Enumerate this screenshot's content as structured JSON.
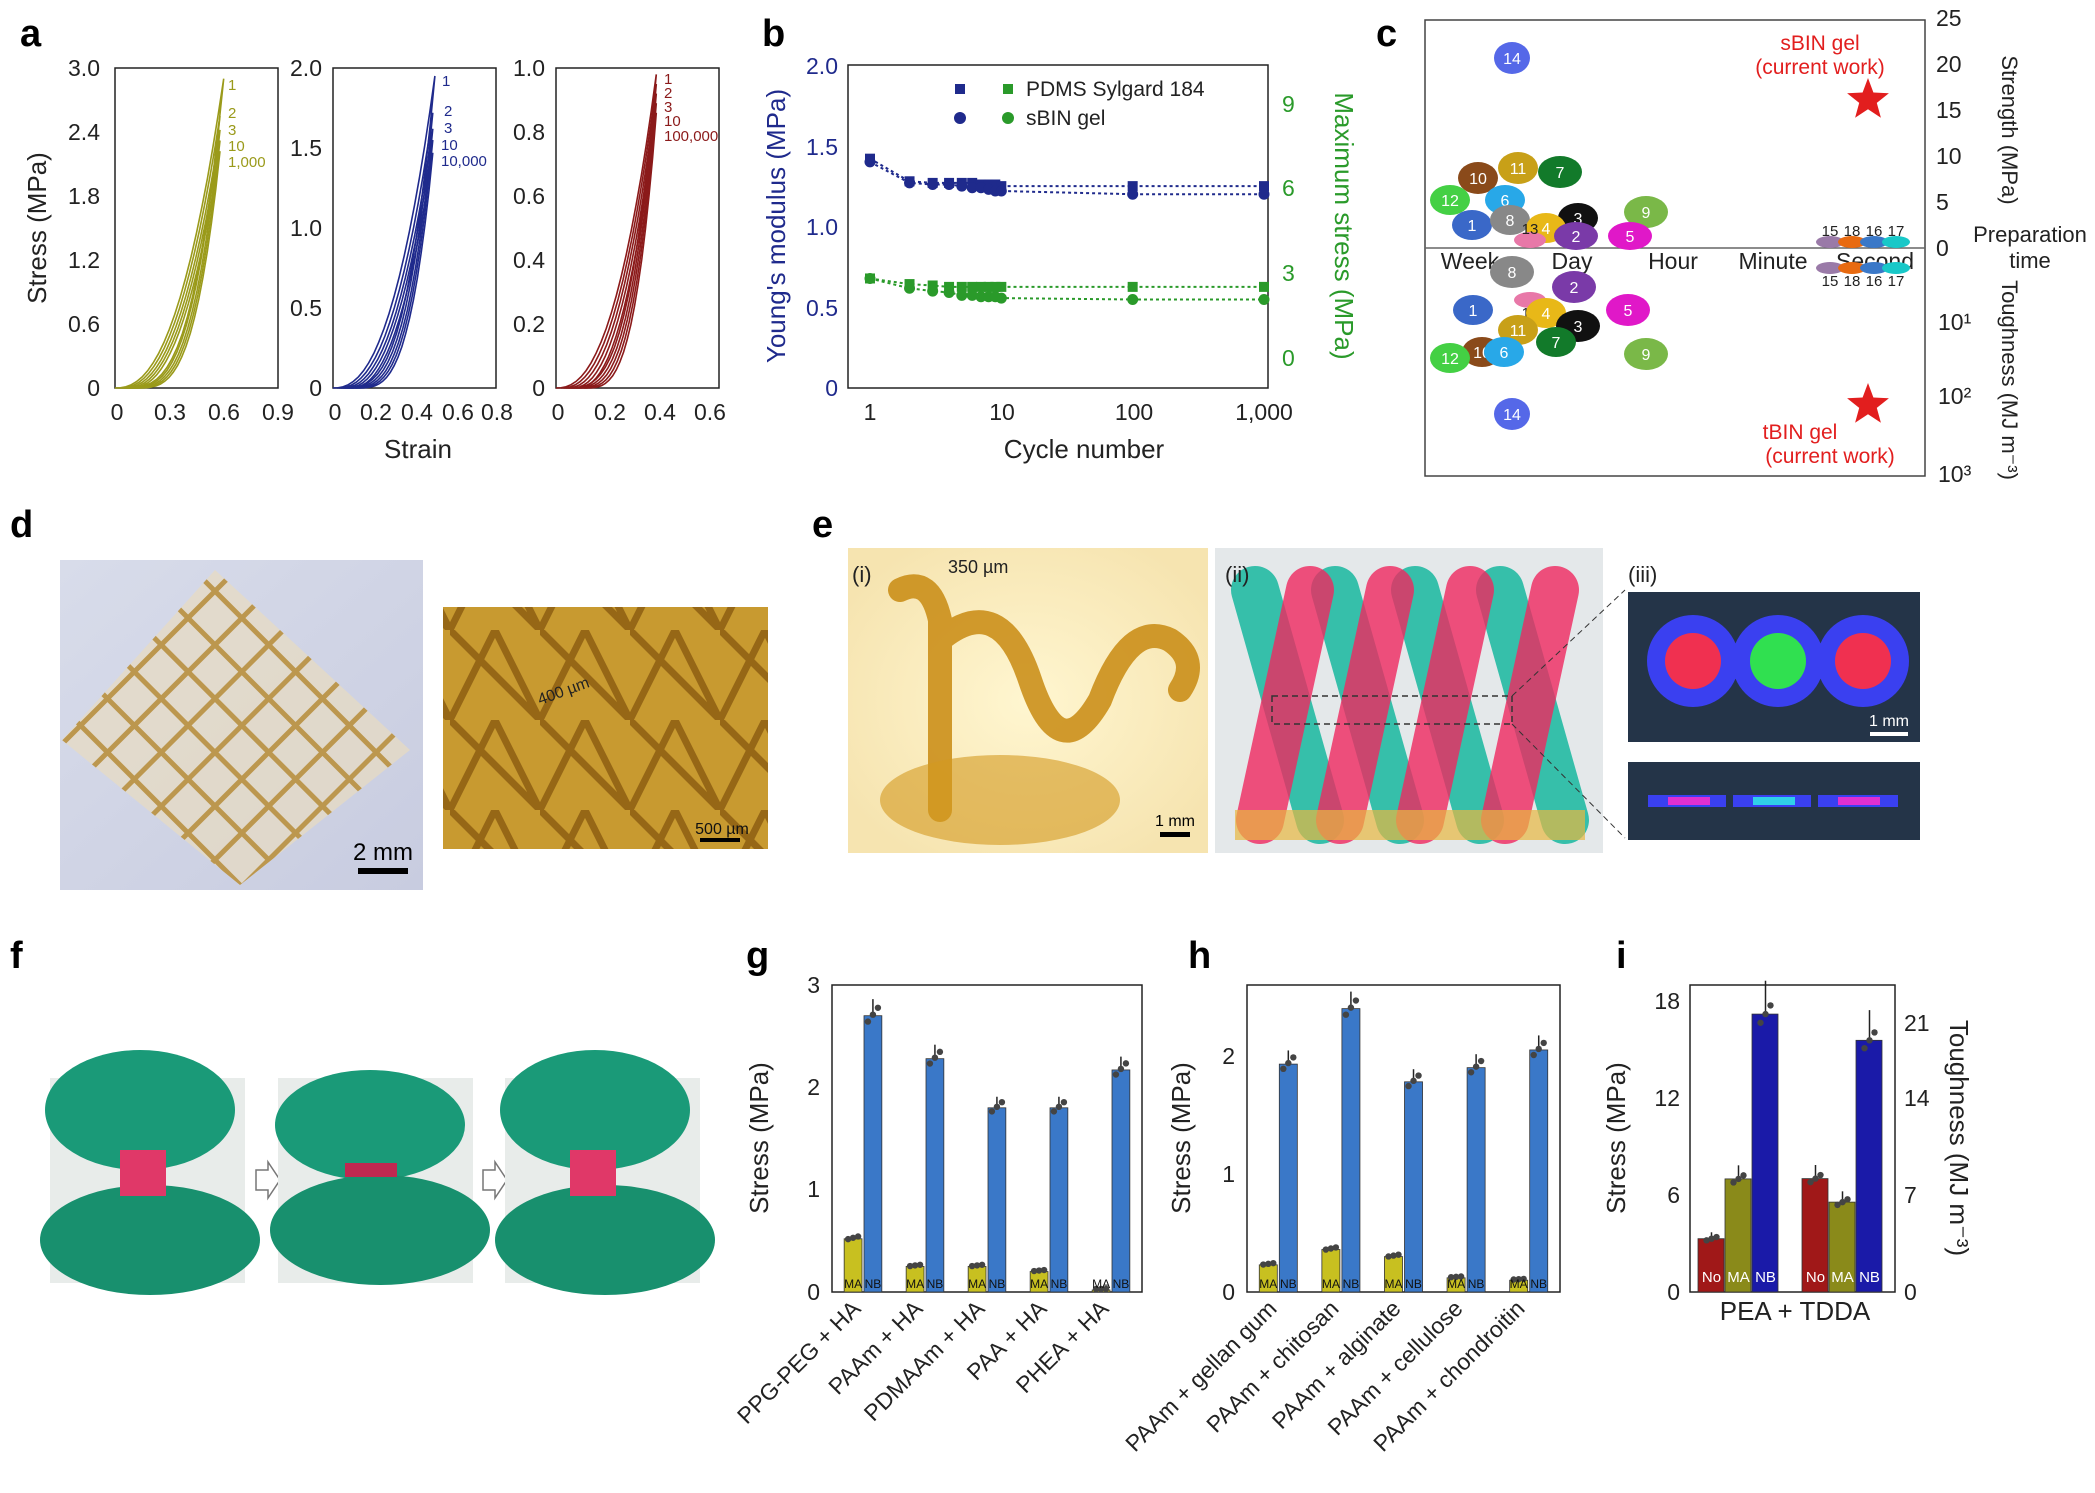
{
  "colors": {
    "olive": "#9a9a1a",
    "navy": "#1f2a8c",
    "maroon": "#8b1a1a",
    "green": "#2a9a2a",
    "blue": "#3a78c8",
    "red": "#e21e1e",
    "ma": "#8a8a1a",
    "nobar": "#a01818",
    "nb": "#1a1aa8"
  },
  "panels": {
    "a": "a",
    "b": "b",
    "c": "c",
    "d": "d",
    "e": "e",
    "f": "f",
    "g": "g",
    "h": "h",
    "i": "i"
  },
  "chart_data": [
    {
      "id": "a1",
      "type": "line",
      "xlabel": "Strain",
      "ylabel": "Stress (MPa)",
      "xticks": [
        "0",
        "0.3",
        "0.6",
        "0.9"
      ],
      "yticks": [
        "0",
        "0.6",
        "1.2",
        "1.8",
        "2.4",
        "3.0"
      ],
      "xlim": [
        0,
        0.9
      ],
      "ylim": [
        0,
        3.0
      ],
      "end_labels": [
        "1",
        "2",
        "3",
        "10",
        "1,000"
      ],
      "series": [
        {
          "name": "1",
          "x_end": 0.6,
          "y_end": 2.9
        },
        {
          "name": "2",
          "x_end": 0.58,
          "y_end": 2.55
        },
        {
          "name": "3",
          "x_end": 0.58,
          "y_end": 2.42
        },
        {
          "name": "10",
          "x_end": 0.58,
          "y_end": 2.32
        },
        {
          "name": "1,000",
          "x_end": 0.58,
          "y_end": 2.22
        }
      ]
    },
    {
      "id": "a2",
      "type": "line",
      "xlabel": "",
      "ylabel": "",
      "xticks": [
        "0",
        "0.2",
        "0.4",
        "0.6",
        "0.8"
      ],
      "yticks": [
        "0",
        "0.5",
        "1.0",
        "1.5",
        "2.0"
      ],
      "xlim": [
        0,
        0.8
      ],
      "ylim": [
        0,
        2.0
      ],
      "end_labels": [
        "1",
        "2",
        "3",
        "10",
        "10,000"
      ],
      "series": [
        {
          "name": "1",
          "x_end": 0.5,
          "y_end": 1.95
        },
        {
          "name": "2",
          "x_end": 0.49,
          "y_end": 1.72
        },
        {
          "name": "3",
          "x_end": 0.49,
          "y_end": 1.62
        },
        {
          "name": "10",
          "x_end": 0.49,
          "y_end": 1.55
        },
        {
          "name": "10,000",
          "x_end": 0.49,
          "y_end": 1.47
        }
      ]
    },
    {
      "id": "a3",
      "type": "line",
      "xlabel": "",
      "ylabel": "",
      "xticks": [
        "0",
        "0.2",
        "0.4",
        "0.6"
      ],
      "yticks": [
        "0",
        "0.2",
        "0.4",
        "0.6",
        "0.8",
        "1.0"
      ],
      "xlim": [
        0,
        0.65
      ],
      "ylim": [
        0,
        1.0
      ],
      "end_labels": [
        "1",
        "2",
        "3",
        "10",
        "100,000"
      ],
      "series": [
        {
          "name": "1",
          "x_end": 0.4,
          "y_end": 0.98
        },
        {
          "name": "2",
          "x_end": 0.4,
          "y_end": 0.95
        },
        {
          "name": "3",
          "x_end": 0.4,
          "y_end": 0.92
        },
        {
          "name": "10",
          "x_end": 0.4,
          "y_end": 0.89
        },
        {
          "name": "100,000",
          "x_end": 0.4,
          "y_end": 0.86
        }
      ]
    },
    {
      "id": "b",
      "type": "scatter",
      "xlabel": "Cycle number",
      "ylabel": "Young's modulus (MPa)",
      "y2label": "Maximum stress (MPa)",
      "xticks": [
        "1",
        "10",
        "100",
        "1,000"
      ],
      "yticks": [
        "0",
        "0.5",
        "1.0",
        "1.5",
        "2.0"
      ],
      "y2ticks": [
        "0",
        "3",
        "6",
        "9"
      ],
      "ylim": [
        0,
        2.0
      ],
      "y2lim": [
        -1,
        10.5
      ],
      "legend": [
        "PDMS Sylgard 184",
        "sBIN gel"
      ],
      "x": [
        1,
        2,
        3,
        4,
        5,
        6,
        7,
        8,
        9,
        10,
        100,
        1000
      ],
      "series": [
        {
          "name": "PDMS Sylgard 184 modulus",
          "axis": "left",
          "values": [
            1.42,
            1.28,
            1.27,
            1.27,
            1.27,
            1.27,
            1.26,
            1.26,
            1.26,
            1.25,
            1.25,
            1.25
          ]
        },
        {
          "name": "sBIN gel modulus",
          "axis": "left",
          "values": [
            1.4,
            1.27,
            1.26,
            1.26,
            1.25,
            1.24,
            1.24,
            1.23,
            1.22,
            1.22,
            1.2,
            1.2
          ]
        },
        {
          "name": "PDMS Sylgard 184 max stress",
          "axis": "right",
          "values": [
            2.9,
            2.7,
            2.65,
            2.6,
            2.6,
            2.6,
            2.6,
            2.6,
            2.6,
            2.6,
            2.6,
            2.6
          ]
        },
        {
          "name": "sBIN gel max stress",
          "axis": "right",
          "values": [
            2.9,
            2.55,
            2.45,
            2.4,
            2.3,
            2.3,
            2.25,
            2.25,
            2.25,
            2.2,
            2.15,
            2.15
          ]
        }
      ]
    },
    {
      "id": "c",
      "type": "scatter",
      "xlabel": "Preparation time",
      "ylabel_top": "Strength (MPa)",
      "ylabel_bottom": "Toughness (MJ m⁻³)",
      "xticks": [
        "Week",
        "Day",
        "Hour",
        "Minute",
        "Second"
      ],
      "ticks_top": [
        "0",
        "5",
        "10",
        "15",
        "20",
        "25"
      ],
      "ticks_bottom": [
        "10¹",
        "10²",
        "10³"
      ],
      "annotations": [
        "sBIN gel",
        "(current work)",
        "tBIN gel",
        "(current work)"
      ],
      "top_points": [
        {
          "label": "14",
          "color": "#5568e8"
        },
        {
          "label": "10",
          "color": "#8a4a1a"
        },
        {
          "label": "11",
          "color": "#c8a018"
        },
        {
          "label": "7",
          "color": "#127a2a"
        },
        {
          "label": "12",
          "color": "#44d044"
        },
        {
          "label": "6",
          "color": "#28a8e8"
        },
        {
          "label": "1",
          "color": "#3a68c8"
        },
        {
          "label": "8",
          "color": "#888888"
        },
        {
          "label": "3",
          "color": "#111111"
        },
        {
          "label": "9",
          "color": "#7ab848"
        },
        {
          "label": "4",
          "color": "#e8b818"
        },
        {
          "label": "13",
          "color": "#e878a8"
        },
        {
          "label": "2",
          "color": "#7a3aa8"
        },
        {
          "label": "5",
          "color": "#e018c8"
        },
        {
          "label": "15",
          "color": "#9a7aa8"
        },
        {
          "label": "18",
          "color": "#e86a10"
        },
        {
          "label": "16",
          "color": "#3a78c8"
        },
        {
          "label": "17",
          "color": "#18c8c8"
        }
      ],
      "bottom_points": [
        {
          "label": "8",
          "color": "#888888"
        },
        {
          "label": "13",
          "color": "#e878a8"
        },
        {
          "label": "2",
          "color": "#7a3aa8"
        },
        {
          "label": "1",
          "color": "#3a68c8"
        },
        {
          "label": "4",
          "color": "#e8b818"
        },
        {
          "label": "5",
          "color": "#e018c8"
        },
        {
          "label": "11",
          "color": "#c8a018"
        },
        {
          "label": "3",
          "color": "#111111"
        },
        {
          "label": "7",
          "color": "#127a2a"
        },
        {
          "label": "10",
          "color": "#8a4a1a"
        },
        {
          "label": "6",
          "color": "#28a8e8"
        },
        {
          "label": "12",
          "color": "#44d044"
        },
        {
          "label": "9",
          "color": "#7ab848"
        },
        {
          "label": "14",
          "color": "#5568e8"
        },
        {
          "label": "15",
          "color": "#9a7aa8"
        },
        {
          "label": "18",
          "color": "#e86a10"
        },
        {
          "label": "16",
          "color": "#3a78c8"
        },
        {
          "label": "17",
          "color": "#18c8c8"
        }
      ],
      "stars": [
        {
          "name": "sBIN gel",
          "strength_MPa": 16
        },
        {
          "name": "tBIN gel",
          "toughness_MJ_m3": 110
        }
      ]
    },
    {
      "id": "g",
      "type": "bar",
      "ylabel": "Stress (MPa)",
      "yticks": [
        "0",
        "1",
        "2",
        "3"
      ],
      "ylim": [
        0,
        3
      ],
      "categories": [
        "PPG-PEG + HA",
        "PAAm + HA",
        "PDMAAm + HA",
        "PAA + HA",
        "PHEA + HA"
      ],
      "bar_labels": [
        "MA",
        "NB"
      ],
      "series": [
        {
          "name": "MA",
          "values": [
            0.52,
            0.25,
            0.25,
            0.2,
            0.02
          ]
        },
        {
          "name": "NB",
          "values": [
            2.7,
            2.28,
            1.8,
            1.8,
            2.17
          ]
        }
      ]
    },
    {
      "id": "h",
      "type": "bar",
      "ylabel": "Stress (MPa)",
      "yticks": [
        "0",
        "1",
        "2"
      ],
      "ylim": [
        0,
        2.6
      ],
      "categories": [
        "PAAm + gellan gum",
        "PAAm + chitosan",
        "PAAm + alginate",
        "PAAm + cellulose",
        "PAAm + chondroitin"
      ],
      "bar_labels": [
        "MA",
        "NB"
      ],
      "series": [
        {
          "name": "MA",
          "values": [
            0.23,
            0.36,
            0.3,
            0.12,
            0.1
          ]
        },
        {
          "name": "NB",
          "values": [
            1.93,
            2.4,
            1.78,
            1.9,
            2.05
          ]
        }
      ]
    },
    {
      "id": "i",
      "type": "bar",
      "ylabel": "Stress (MPa)",
      "y2label": "Toughness (MJ m⁻³)",
      "yticks": [
        "0",
        "6",
        "12",
        "18"
      ],
      "y2ticks": [
        "0",
        "7",
        "14",
        "21"
      ],
      "ylim": [
        0,
        19
      ],
      "y2lim": [
        0,
        22.2
      ],
      "categories": [
        "PEA + TDDA"
      ],
      "bar_labels": [
        "No",
        "MA",
        "NB"
      ],
      "groups": [
        {
          "name": "Stress",
          "axis": "left",
          "values": [
            3.3,
            7.0,
            17.2
          ]
        },
        {
          "name": "Toughness",
          "axis": "right",
          "values": [
            8.2,
            6.5,
            18.2
          ]
        }
      ]
    }
  ],
  "photos": {
    "d_scale1": "2 mm",
    "d_scale2": "400 µm",
    "d_scale3": "500 µm",
    "e_i": "(i)",
    "e_ii": "(ii)",
    "e_iii": "(iii)",
    "e_dim": "350 µm",
    "e_scale1": "1 mm",
    "e_scale2": "1 mm"
  }
}
